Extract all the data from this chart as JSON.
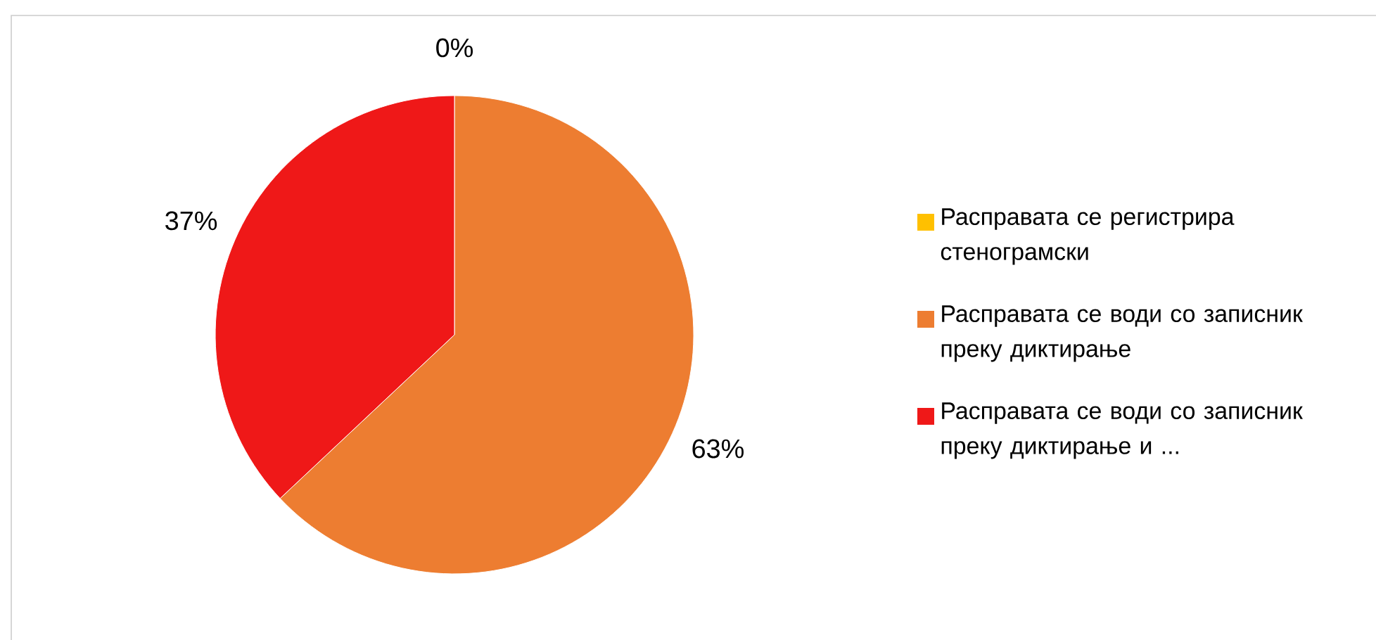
{
  "chart_data": {
    "type": "pie",
    "categories": [
      "Расправата се регистрира стенограмски",
      "Расправата се води со записник преку диктирање",
      "Расправата се води со записник преку диктирање и ..."
    ],
    "values": [
      0,
      63,
      37
    ],
    "colors": [
      "#ffc000",
      "#ed7d31",
      "#ef1818"
    ],
    "value_labels": [
      "0%",
      "63%",
      "37%"
    ],
    "legend": "right"
  }
}
